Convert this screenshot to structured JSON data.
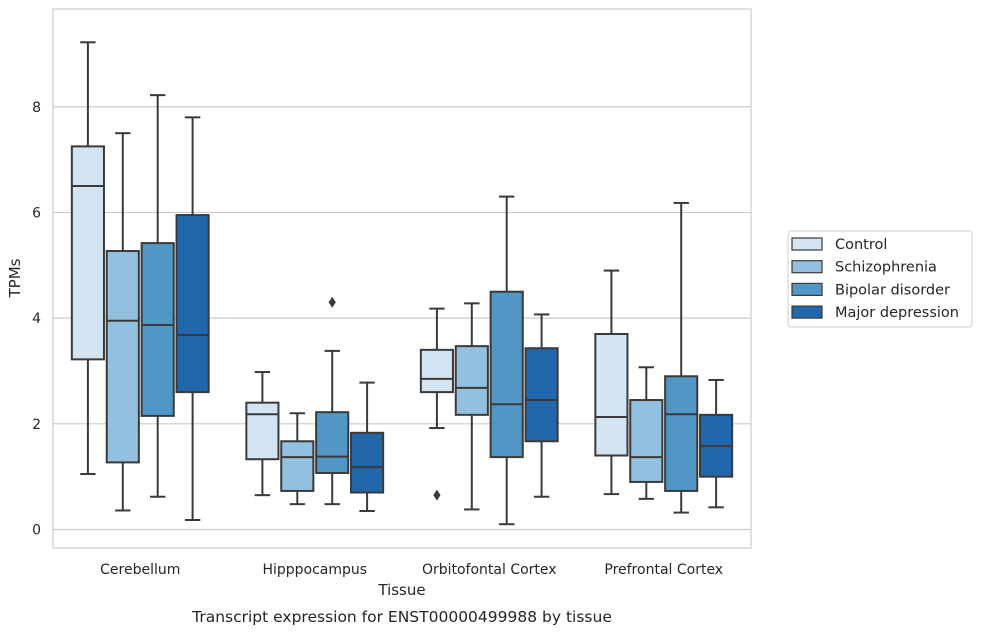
{
  "chart_data": {
    "type": "box",
    "title": "",
    "caption": "Transcript expression for ENST00000499988 by tissue",
    "xlabel": "Tissue",
    "ylabel": "TPMs",
    "ylim": [
      -0.35,
      9.85
    ],
    "yticks": [
      0,
      2,
      4,
      6,
      8
    ],
    "grid": true,
    "legend_position": "right",
    "categories": [
      "Cerebellum",
      "Hipppocampus",
      "Orbitofontal Cortex",
      "Prefrontal Cortex"
    ],
    "series": [
      {
        "name": "Control",
        "color": "#d3e4f3",
        "boxes": [
          {
            "whislo": 1.05,
            "q1": 3.22,
            "med": 6.5,
            "q3": 7.25,
            "whishi": 9.22,
            "fliers": []
          },
          {
            "whislo": 0.65,
            "q1": 1.33,
            "med": 2.18,
            "q3": 2.4,
            "whishi": 2.98,
            "fliers": []
          },
          {
            "whislo": 1.92,
            "q1": 2.6,
            "med": 2.85,
            "q3": 3.4,
            "whishi": 4.18,
            "fliers": [
              0.65
            ]
          },
          {
            "whislo": 0.67,
            "q1": 1.4,
            "med": 2.13,
            "q3": 3.7,
            "whishi": 4.9,
            "fliers": []
          }
        ]
      },
      {
        "name": "Schizophrenia",
        "color": "#92c0de",
        "boxes": [
          {
            "whislo": 0.36,
            "q1": 1.27,
            "med": 3.95,
            "q3": 5.27,
            "whishi": 7.5,
            "fliers": []
          },
          {
            "whislo": 0.48,
            "q1": 0.73,
            "med": 1.37,
            "q3": 1.67,
            "whishi": 2.2,
            "fliers": []
          },
          {
            "whislo": 0.38,
            "q1": 2.17,
            "med": 2.68,
            "q3": 3.47,
            "whishi": 4.28,
            "fliers": []
          },
          {
            "whislo": 0.58,
            "q1": 0.9,
            "med": 1.37,
            "q3": 2.45,
            "whishi": 3.07,
            "fliers": []
          }
        ]
      },
      {
        "name": "Bipolar disorder",
        "color": "#5296c5",
        "boxes": [
          {
            "whislo": 0.62,
            "q1": 2.15,
            "med": 3.87,
            "q3": 5.42,
            "whishi": 8.22,
            "fliers": []
          },
          {
            "whislo": 0.48,
            "q1": 1.07,
            "med": 1.38,
            "q3": 2.22,
            "whishi": 3.38,
            "fliers": [
              4.3
            ]
          },
          {
            "whislo": 0.1,
            "q1": 1.37,
            "med": 2.37,
            "q3": 4.5,
            "whishi": 6.3,
            "fliers": []
          },
          {
            "whislo": 0.32,
            "q1": 0.73,
            "med": 2.18,
            "q3": 2.9,
            "whishi": 6.18,
            "fliers": []
          }
        ]
      },
      {
        "name": "Major depression",
        "color": "#2266ac",
        "boxes": [
          {
            "whislo": 0.18,
            "q1": 2.6,
            "med": 3.68,
            "q3": 5.95,
            "whishi": 7.8,
            "fliers": []
          },
          {
            "whislo": 0.35,
            "q1": 0.7,
            "med": 1.18,
            "q3": 1.83,
            "whishi": 2.78,
            "fliers": []
          },
          {
            "whislo": 0.62,
            "q1": 1.67,
            "med": 2.45,
            "q3": 3.43,
            "whishi": 4.07,
            "fliers": []
          },
          {
            "whislo": 0.42,
            "q1": 1.0,
            "med": 1.58,
            "q3": 2.17,
            "whishi": 2.83,
            "fliers": []
          }
        ]
      }
    ]
  }
}
